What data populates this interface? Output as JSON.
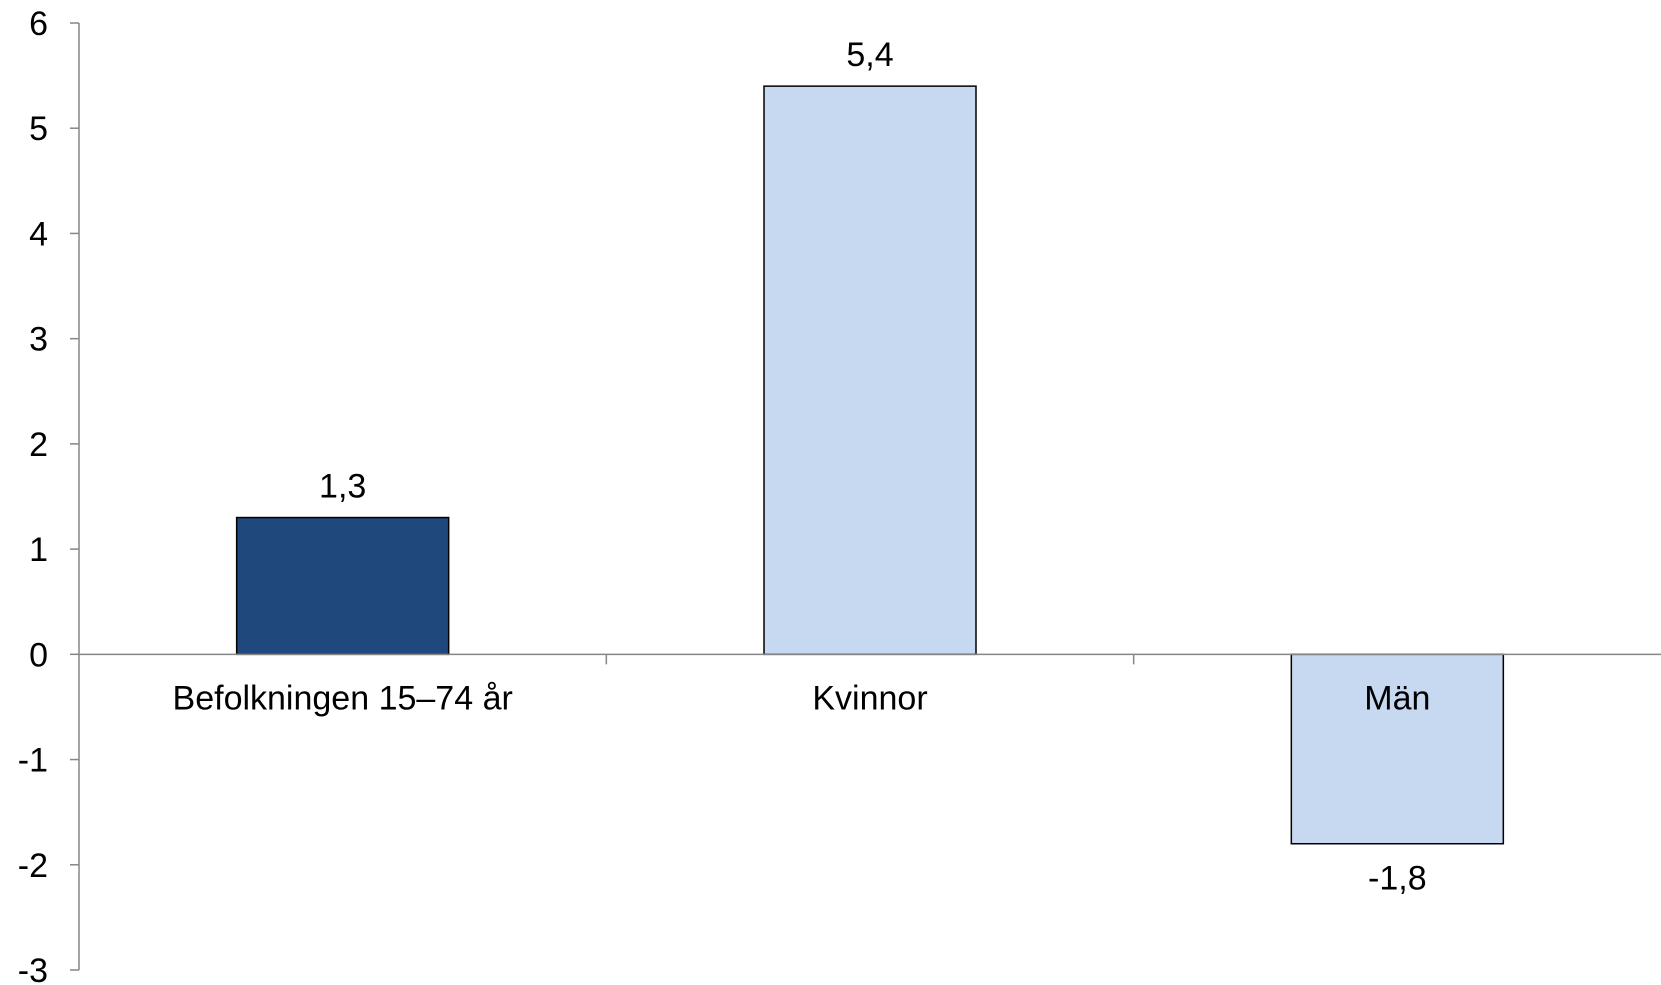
{
  "chart_data": {
    "type": "bar",
    "categories": [
      "Befolkningen 15–74 år",
      "Kvinnor",
      "Män"
    ],
    "values": [
      1.3,
      5.4,
      -1.8
    ],
    "value_labels": [
      "1,3",
      "5,4",
      "-1,8"
    ],
    "bar_colors": [
      "#1f497d",
      "#c6d9f1",
      "#c6d9f1"
    ],
    "bar_border_color": "#000000",
    "axis_color": "#868686",
    "title": "",
    "xlabel": "",
    "ylabel": "",
    "ylim": [
      -3,
      6
    ],
    "yticks": [
      6,
      5,
      4,
      3,
      2,
      1,
      0,
      -1,
      -2,
      -3
    ],
    "ytick_labels": [
      "6",
      "5",
      "4",
      "3",
      "2",
      "1",
      "0",
      "-1",
      "-2",
      "-3"
    ],
    "grid": false,
    "legend": "none"
  }
}
